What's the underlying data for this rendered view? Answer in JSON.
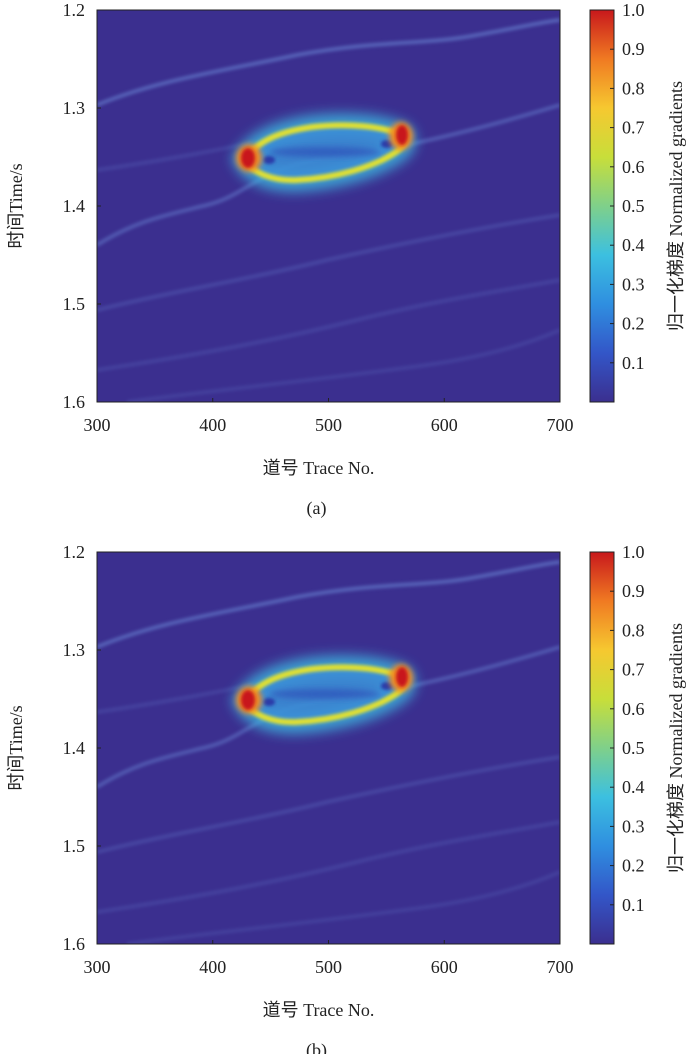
{
  "chart_data": [
    {
      "type": "heatmap",
      "caption": "(a)",
      "xlabel": "道号 Trace No.",
      "ylabel": "时间Time/s",
      "colorbar_label": "归一化梯度 Normalized gradients",
      "xlim": [
        300,
        700
      ],
      "xticks": [
        300,
        400,
        500,
        600,
        700
      ],
      "ylim": [
        1.2,
        1.6
      ],
      "y_reversed": true,
      "yticks": [
        1.2,
        1.3,
        1.4,
        1.5,
        1.6
      ],
      "clim": [
        0,
        1
      ],
      "cticks": [
        0.1,
        0.2,
        0.3,
        0.4,
        0.5,
        0.6,
        0.7,
        0.8,
        0.9,
        {
          "value": 1,
          "label": "1.0"
        }
      ],
      "colormap": [
        "#3b2f8f",
        "#3356c8",
        "#2f8fe0",
        "#3cc0e0",
        "#7fd08a",
        "#c8de3a",
        "#f6c830",
        "#f07a22",
        "#c8181c"
      ]
    },
    {
      "type": "heatmap",
      "caption": "(b)",
      "xlabel": "道号 Trace No.",
      "ylabel": "时间Time/s",
      "colorbar_label": "归一化梯度 Normalized gradients",
      "xlim": [
        300,
        700
      ],
      "xticks": [
        300,
        400,
        500,
        600,
        700
      ],
      "ylim": [
        1.2,
        1.6
      ],
      "y_reversed": true,
      "yticks": [
        1.2,
        1.3,
        1.4,
        1.5,
        1.6
      ],
      "clim": [
        0,
        1
      ],
      "cticks": [
        0.1,
        0.2,
        0.3,
        0.4,
        0.5,
        0.6,
        0.7,
        0.8,
        0.9,
        {
          "value": 1,
          "label": "1.0"
        }
      ],
      "colormap": [
        "#3b2f8f",
        "#3356c8",
        "#2f8fe0",
        "#3cc0e0",
        "#7fd08a",
        "#c8de3a",
        "#f6c830",
        "#f07a22",
        "#c8181c"
      ]
    }
  ]
}
